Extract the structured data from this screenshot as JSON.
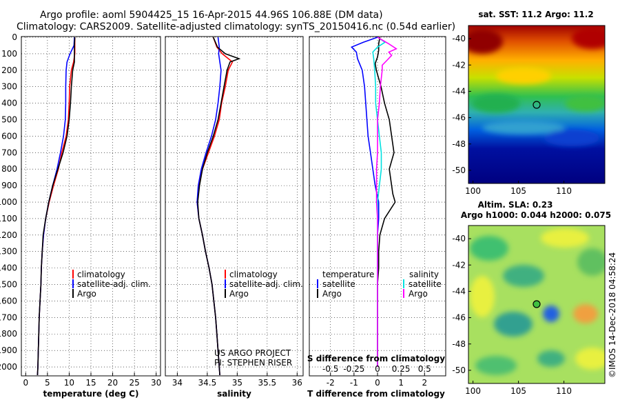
{
  "header": {
    "line1": "Argo profile: aoml 5904425_15 16-Apr-2015 44.96S 106.88E (DM data)",
    "line2": "Climatology: CARS2009. Satellite-adjusted climatology: synTS_20150416.nc (0.54d earlier)"
  },
  "colors": {
    "climatology": "#ff0000",
    "satellite": "#0000ff",
    "argo": "#000000",
    "sal_sat": "#00e0e0",
    "sal_argo": "#ff00ff"
  },
  "depth_ticks": [
    "0",
    "100",
    "200",
    "300",
    "400",
    "500",
    "600",
    "700",
    "800",
    "900",
    "1000",
    "1100",
    "1200",
    "1300",
    "1400",
    "1500",
    "1600",
    "1700",
    "1800",
    "1900",
    "2000"
  ],
  "chart_data": [
    {
      "type": "line",
      "xlabel": "temperature (deg C)",
      "xticks": [
        "0",
        "5",
        "10",
        "15",
        "20",
        "25",
        "30"
      ],
      "xlim": [
        -1,
        31
      ],
      "ylim": [
        2050,
        0
      ],
      "legend": {
        "placement": "bottom-center",
        "items": [
          "climatology",
          "satellite-adj. clim.",
          "Argo"
        ]
      },
      "series": [
        {
          "name": "climatology",
          "depth": [
            0,
            50,
            100,
            150,
            200,
            300,
            400,
            500,
            600,
            700,
            800,
            900,
            1000,
            1100,
            1200,
            1300,
            1400,
            1500,
            1600,
            1700,
            1800,
            1900,
            2000,
            2050
          ],
          "values": [
            11.3,
            11.3,
            11.3,
            11.0,
            10.5,
            10.1,
            10.0,
            9.8,
            9.3,
            8.3,
            7.5,
            6.4,
            5.4,
            4.6,
            4.1,
            3.8,
            3.6,
            3.5,
            3.3,
            3.1,
            3.0,
            2.9,
            2.8,
            2.7
          ]
        },
        {
          "name": "satellite-adj. clim.",
          "depth": [
            0,
            50,
            100,
            150,
            200,
            300,
            400,
            500,
            600,
            700,
            800,
            900,
            1000,
            1100,
            1200,
            1300,
            1400,
            1500,
            1600,
            1700,
            1800,
            1900,
            2000,
            2050
          ],
          "values": [
            11.2,
            11.1,
            10.2,
            9.5,
            9.3,
            9.2,
            9.2,
            9.1,
            8.7,
            8.0,
            7.2,
            6.2,
            5.3,
            4.6,
            4.1,
            3.8,
            3.6,
            3.5,
            3.3,
            3.1,
            3.0,
            2.9,
            2.8,
            2.7
          ]
        },
        {
          "name": "Argo",
          "depth": [
            0,
            50,
            100,
            150,
            200,
            300,
            400,
            500,
            600,
            700,
            800,
            900,
            1000,
            1100,
            1200,
            1300,
            1400,
            1500,
            1600,
            1700,
            1800,
            1900,
            2000,
            2050
          ],
          "values": [
            11.3,
            11.2,
            11.2,
            11.2,
            10.8,
            10.5,
            10.3,
            10.0,
            9.5,
            8.6,
            7.4,
            6.2,
            5.3,
            4.6,
            4.0,
            3.8,
            3.6,
            3.5,
            3.3,
            3.1,
            3.0,
            2.9,
            2.8,
            2.7
          ]
        }
      ]
    },
    {
      "type": "line",
      "xlabel": "salinity",
      "xticks": [
        "34",
        "34.5",
        "35",
        "35.5",
        "36"
      ],
      "xlim": [
        33.8,
        36.1
      ],
      "ylim": [
        2050,
        0
      ],
      "legend": {
        "placement": "bottom-center",
        "items": [
          "climatology",
          "satellite-adj. clim.",
          "Argo"
        ]
      },
      "annotations": [
        "US ARGO PROJECT",
        "PI: STEPHEN RISER"
      ],
      "series": [
        {
          "name": "climatology",
          "depth": [
            0,
            60,
            100,
            150,
            200,
            300,
            400,
            500,
            600,
            700,
            800,
            900,
            1000,
            1100,
            1200,
            1300,
            1400,
            1500,
            1600,
            1700,
            1800,
            1900,
            2000,
            2050
          ],
          "values": [
            34.6,
            34.66,
            34.75,
            34.92,
            34.85,
            34.8,
            34.74,
            34.7,
            34.62,
            34.52,
            34.42,
            34.36,
            34.33,
            34.36,
            34.42,
            34.47,
            34.53,
            34.58,
            34.61,
            34.64,
            34.66,
            34.68,
            34.7,
            34.71
          ]
        },
        {
          "name": "satellite-adj. clim.",
          "depth": [
            0,
            60,
            100,
            150,
            200,
            300,
            400,
            500,
            600,
            700,
            800,
            900,
            1000,
            1100,
            1200,
            1300,
            1400,
            1500,
            1600,
            1700,
            1800,
            1900,
            2000,
            2050
          ],
          "values": [
            34.68,
            34.7,
            34.69,
            34.71,
            34.73,
            34.71,
            34.68,
            34.64,
            34.57,
            34.48,
            34.4,
            34.35,
            34.33,
            34.36,
            34.42,
            34.47,
            34.53,
            34.58,
            34.61,
            34.64,
            34.66,
            34.68,
            34.7,
            34.71
          ]
        },
        {
          "name": "Argo",
          "depth": [
            0,
            60,
            100,
            130,
            150,
            200,
            300,
            400,
            500,
            600,
            700,
            800,
            900,
            1000,
            1100,
            1200,
            1300,
            1400,
            1500,
            1600,
            1700,
            1800,
            1900,
            2000,
            2050
          ],
          "values": [
            34.6,
            34.67,
            34.8,
            35.03,
            34.88,
            34.83,
            34.78,
            34.73,
            34.68,
            34.6,
            34.5,
            34.42,
            34.37,
            34.34,
            34.36,
            34.42,
            34.47,
            34.53,
            34.58,
            34.61,
            34.64,
            34.66,
            34.68,
            34.7,
            34.71
          ]
        }
      ]
    },
    {
      "type": "line",
      "xlabel": "T difference from climatology",
      "xticks": [
        "-2",
        "-1",
        "0",
        "1",
        "2"
      ],
      "xlim": [
        -2.9,
        2.9
      ],
      "ylim": [
        2050,
        0
      ],
      "top_label": "S difference from climatology",
      "top_ticks": [
        "-0.5",
        "-0.25",
        "0",
        "0.25",
        "0.5"
      ],
      "legend": {
        "placement": "bottom",
        "items": [
          "temperature",
          "satellite",
          "Argo",
          "salinity",
          "satellite",
          "Argo"
        ]
      },
      "series": [
        {
          "name": "satellite",
          "depth": [
            0,
            30,
            60,
            90,
            130,
            200,
            300,
            400,
            500,
            600,
            700,
            800,
            900,
            1000,
            1100,
            1200,
            1300,
            1400,
            1500,
            1600,
            1700,
            1800,
            1900,
            2000
          ],
          "values": [
            0.0,
            -0.6,
            -1.1,
            -0.9,
            -0.85,
            -0.65,
            -0.55,
            -0.5,
            -0.45,
            -0.4,
            -0.3,
            -0.2,
            -0.1,
            0.05,
            0.05,
            0.0,
            0.0,
            0.0,
            0.0,
            0.0,
            0.0,
            0.0,
            0.0,
            0.0
          ]
        },
        {
          "name": "Argo",
          "depth": [
            0,
            40,
            80,
            120,
            160,
            200,
            300,
            400,
            500,
            600,
            700,
            800,
            900,
            950,
            1000,
            1100,
            1200,
            1300,
            1400,
            1500,
            1600,
            1700,
            1800,
            1900,
            2000
          ],
          "values": [
            0.1,
            0.05,
            0.05,
            0.0,
            -0.1,
            -0.05,
            0.15,
            0.3,
            0.5,
            0.6,
            0.7,
            0.5,
            0.6,
            0.65,
            0.75,
            0.3,
            0.1,
            0.05,
            0.05,
            0.0,
            0.0,
            0.0,
            0.0,
            0.0,
            0.0
          ]
        }
      ],
      "salinity_series": [
        {
          "name": "satellite",
          "depth": [
            0,
            30,
            60,
            90,
            130,
            200,
            300,
            400,
            500,
            600,
            700,
            800,
            900,
            1000,
            1100,
            1200,
            1300,
            1400,
            1500,
            1600,
            1700,
            1800,
            1900,
            2000
          ],
          "values": [
            0.0,
            0.08,
            0.0,
            -0.05,
            -0.04,
            -0.03,
            -0.02,
            -0.02,
            0.0,
            0.02,
            0.04,
            0.04,
            0.02,
            0.0,
            0.0,
            0.0,
            0.0,
            0.0,
            0.0,
            0.0,
            0.0,
            0.0,
            0.0,
            0.0
          ]
        },
        {
          "name": "Argo",
          "depth": [
            0,
            40,
            70,
            90,
            110,
            140,
            170,
            200,
            300,
            400,
            500,
            600,
            700,
            800,
            900,
            1000,
            1100,
            1200,
            1300,
            1400,
            1500,
            1600,
            1700,
            1800,
            1900,
            2000
          ],
          "values": [
            0.0,
            0.12,
            0.2,
            0.12,
            0.15,
            0.1,
            0.05,
            0.05,
            0.03,
            0.02,
            0.0,
            0.0,
            0.0,
            -0.01,
            -0.01,
            -0.01,
            0.0,
            0.0,
            0.0,
            0.0,
            0.0,
            0.0,
            0.0,
            0.0,
            0.0,
            0.0
          ]
        }
      ]
    },
    {
      "type": "heatmap",
      "title": "sat. SST: 11.2 Argo: 11.2",
      "xticks": [
        "100",
        "105",
        "110"
      ],
      "yticks": [
        "-40",
        "-42",
        "-44",
        "-46",
        "-48",
        "-50"
      ],
      "xlim": [
        99.5,
        114.5
      ],
      "ylim": [
        -51,
        -39
      ],
      "marker": {
        "lon": 106.88,
        "lat": -44.96
      }
    },
    {
      "type": "heatmap",
      "title": "Altim. SLA: 0.23",
      "subtitle": "Argo h1000: 0.044 h2000: 0.075",
      "xticks": [
        "100",
        "105",
        "110"
      ],
      "yticks": [
        "-40",
        "-42",
        "-44",
        "-46",
        "-48",
        "-50"
      ],
      "xlim": [
        99.5,
        114.5
      ],
      "ylim": [
        -51,
        -39
      ],
      "marker": {
        "lon": 106.88,
        "lat": -44.96
      }
    }
  ],
  "footer": {
    "stamp": "©IMOS 14-Dec-2018 04:58:24"
  }
}
